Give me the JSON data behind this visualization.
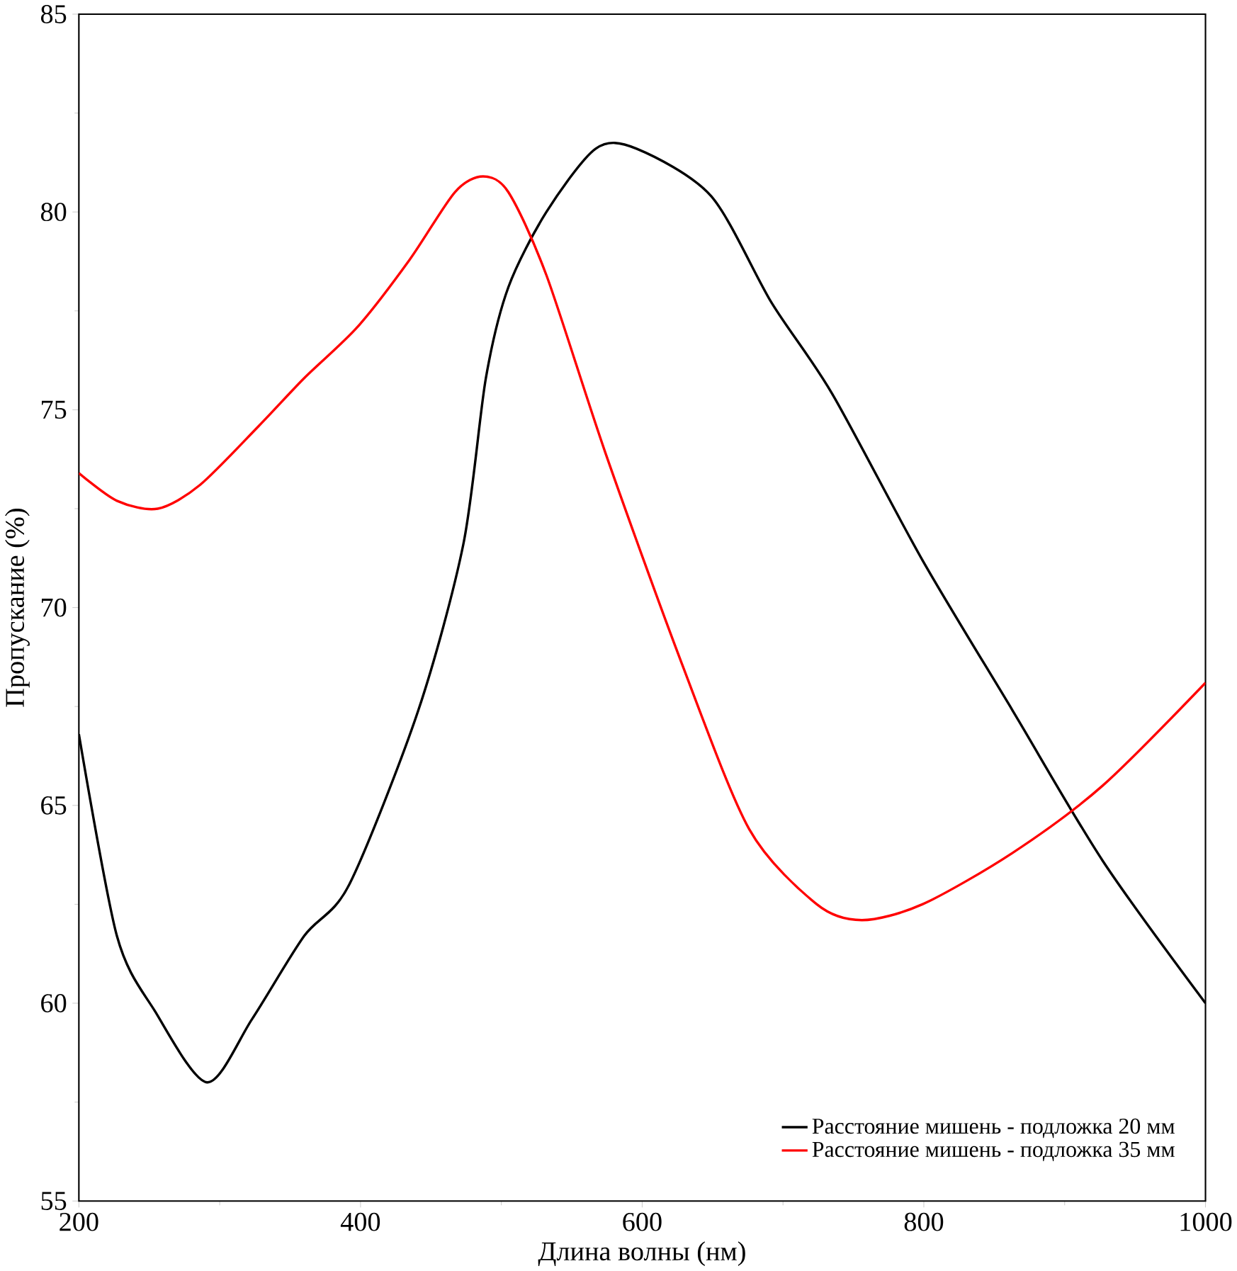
{
  "chart_data": {
    "type": "line",
    "xlabel": "Длина волны (нм)",
    "ylabel": "Пропускание (%)",
    "xlim": [
      200,
      1000
    ],
    "ylim": [
      55,
      85
    ],
    "xticks": [
      200,
      400,
      600,
      800,
      1000
    ],
    "yticks": [
      55,
      60,
      65,
      70,
      75,
      80,
      85
    ],
    "legend": "bottom right",
    "grid": false,
    "marker": "none",
    "line_style": "solid",
    "series": [
      {
        "name": "Расстояние мишень - подложка 20 мм",
        "color": "#000000",
        "x": [
          200,
          227,
          254,
          291,
          323,
          360,
          392,
          441,
          473,
          489,
          505,
          532,
          567,
          596,
          649,
          692,
          735,
          799,
          863,
          927,
          1000
        ],
        "values": [
          66.8,
          61.7,
          59.8,
          58.0,
          59.6,
          61.7,
          63.0,
          67.4,
          71.6,
          75.8,
          78.1,
          80.0,
          81.6,
          81.6,
          80.4,
          77.7,
          75.4,
          71.2,
          67.4,
          63.6,
          60.0
        ]
      },
      {
        "name": "Расстояние мишень - подложка 35 мм",
        "color": "#ff0000",
        "x": [
          200,
          227,
          256,
          286,
          328,
          360,
          398,
          435,
          467,
          487,
          505,
          532,
          574,
          628,
          676,
          724,
          756,
          799,
          863,
          927,
          1000
        ],
        "values": [
          73.4,
          72.7,
          72.5,
          73.1,
          74.6,
          75.8,
          77.1,
          78.8,
          80.5,
          80.9,
          80.5,
          78.4,
          73.9,
          68.6,
          64.4,
          62.5,
          62.1,
          62.5,
          63.8,
          65.5,
          68.1
        ]
      }
    ]
  }
}
